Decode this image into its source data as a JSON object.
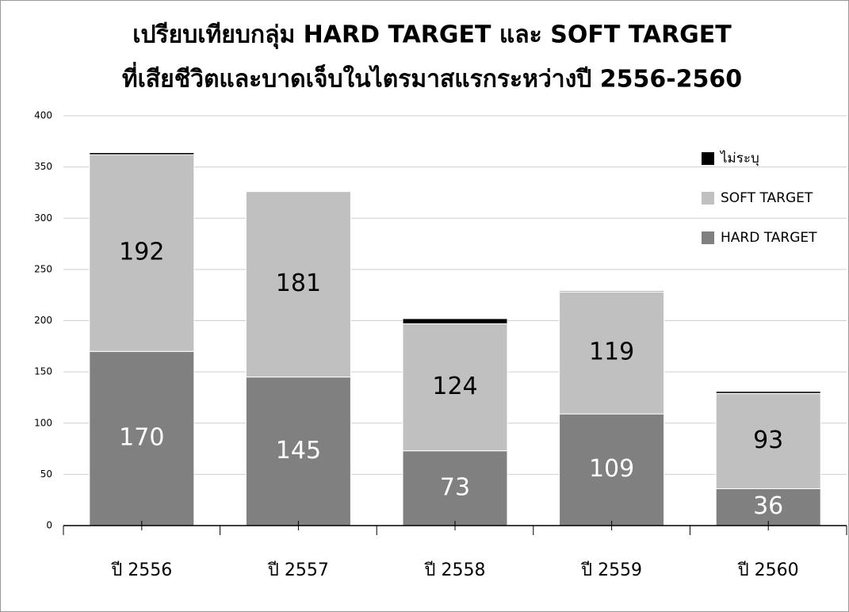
{
  "chart_data": {
    "type": "stacked_bar",
    "title": [
      "เปรียบเทียบกลุ่ม HARD TARGET และ SOFT TARGET",
      "ที่เสียชีวิตและบาดเจ็บในไตรมาสแรกระหว่างปี 2556-2560"
    ],
    "categories": [
      "ปี 2556",
      "ปี 2557",
      "ปี 2558",
      "ปี 2559",
      "ปี 2560"
    ],
    "series": [
      {
        "name": "HARD TARGET",
        "color": "#808080",
        "label_color": "#ffffff",
        "values": [
          170,
          145,
          73,
          109,
          36
        ]
      },
      {
        "name": "SOFT TARGET",
        "color": "#c0c0c0",
        "label_color": "#000000",
        "values": [
          192,
          181,
          124,
          119,
          93
        ]
      },
      {
        "name": "ไม่ระบุ",
        "color": "#000000",
        "values": [
          2,
          0,
          5,
          1,
          2
        ]
      }
    ],
    "ylim": [
      0,
      400
    ],
    "yticks": [
      0,
      50,
      100,
      150,
      200,
      250,
      300,
      350,
      400
    ],
    "grid": true,
    "legend": "right"
  }
}
